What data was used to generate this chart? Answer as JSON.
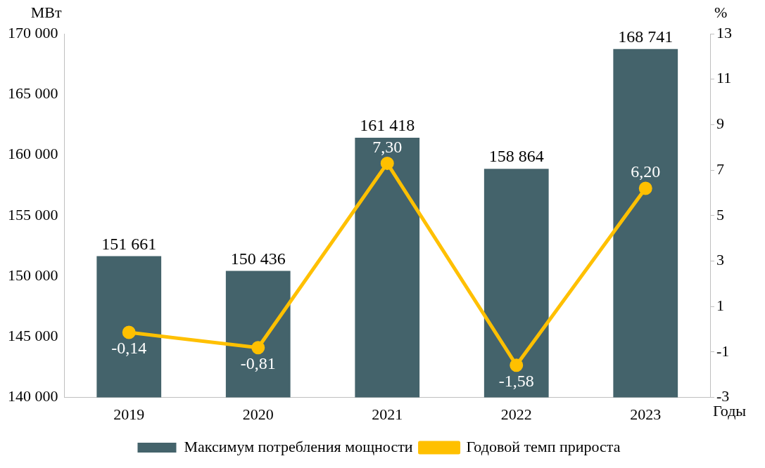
{
  "chart_data": {
    "type": "bar",
    "xlabel": "Годы",
    "ylabel": "МВт",
    "y2label": "%",
    "categories": [
      "2019",
      "2020",
      "2021",
      "2022",
      "2023"
    ],
    "series": [
      {
        "name": "Максимум потребления мощности",
        "color": "#44636b",
        "values": [
          151661,
          150436,
          161418,
          158864,
          168741
        ],
        "value_labels": [
          "151 661",
          "150 436",
          "161 418",
          "158 864",
          "168 741"
        ]
      },
      {
        "name": "Годовой темп прироста",
        "type": "line",
        "axis": "y2",
        "color": "#ffc000",
        "marker": "circle",
        "values": [
          -0.14,
          -0.81,
          7.3,
          -1.58,
          6.2
        ],
        "value_labels": [
          "-0,14",
          "-0,81",
          "7,30",
          "-1,58",
          "6,20"
        ]
      }
    ],
    "ylim": [
      140000,
      170000
    ],
    "yticks": [
      {
        "value": 140000,
        "label": "140 000"
      },
      {
        "value": 145000,
        "label": "145 000"
      },
      {
        "value": 150000,
        "label": "150 000"
      },
      {
        "value": 155000,
        "label": "155 000"
      },
      {
        "value": 160000,
        "label": "160 000"
      },
      {
        "value": 165000,
        "label": "165 000"
      },
      {
        "value": 170000,
        "label": "170 000"
      }
    ],
    "y2lim": [
      -3,
      13
    ],
    "y2ticks": [
      -3,
      -1,
      1,
      3,
      5,
      7,
      9,
      11,
      13
    ],
    "grid": false,
    "legend": "bottom"
  }
}
